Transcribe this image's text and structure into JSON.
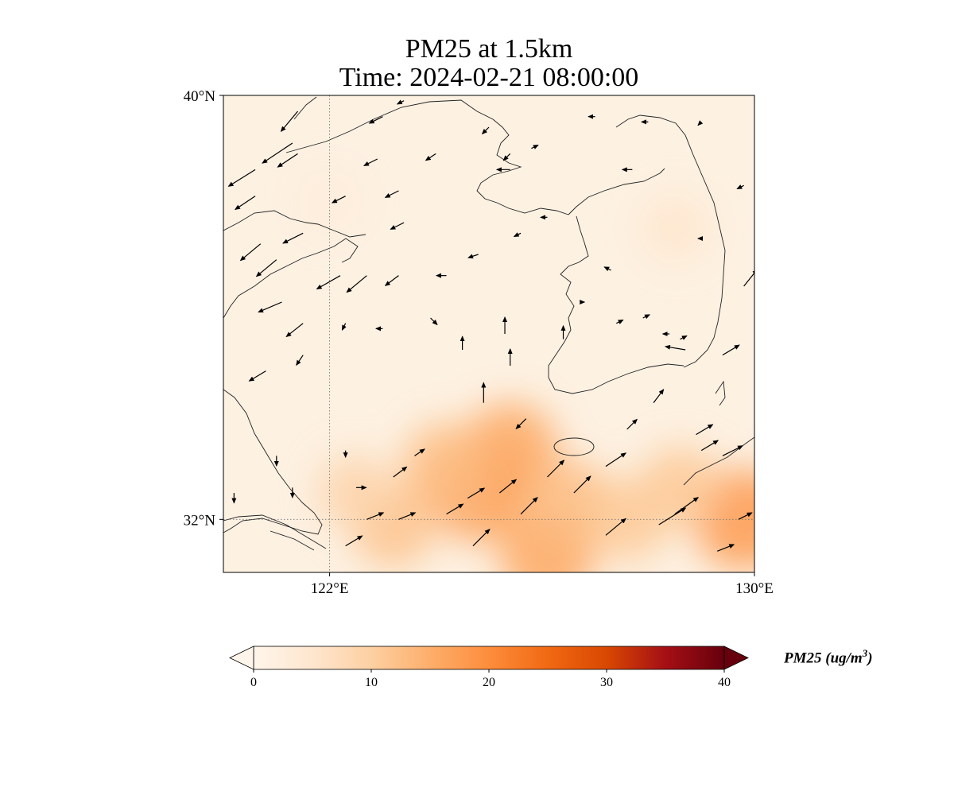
{
  "title": {
    "line1": "PM25 at 1.5km",
    "line2": "Time: 2024-02-21 08:00:00"
  },
  "map": {
    "projection": "lat-lon",
    "extent": {
      "lon_min": 120.0,
      "lon_max": 130.0,
      "lat_min": 31.0,
      "lat_max": 40.0
    },
    "lon_ticks": [
      {
        "value": 122,
        "label": "122°E"
      },
      {
        "value": 130,
        "label": "130°E"
      }
    ],
    "lat_ticks": [
      {
        "value": 40,
        "label": "40°N"
      },
      {
        "value": 32,
        "label": "32°N"
      }
    ],
    "gridlines": {
      "lon": [
        122
      ],
      "lat": [
        32
      ],
      "style": "dotted"
    },
    "coastlines": true,
    "background_color": "#fdf1e2"
  },
  "chart_data": {
    "type": "heatmap",
    "variable": "PM25",
    "level": "1.5km",
    "time": "2024-02-21 08:00:00",
    "colorbar": {
      "label": "PM25 (ug/m",
      "label_sup": "3",
      "label_close": ")",
      "ticks": [
        0,
        10,
        20,
        30,
        40
      ],
      "vmin": 0,
      "vmax": 40,
      "extend": "both",
      "colors": [
        "#fff5eb",
        "#fee6ce",
        "#fdd0a2",
        "#fdae6b",
        "#fd8d3c",
        "#f16913",
        "#d94801",
        "#a50f15",
        "#67000d"
      ]
    },
    "hotspots": [
      {
        "lon": 124.8,
        "lat": 32.5,
        "value": 17
      },
      {
        "lon": 125.4,
        "lat": 33.3,
        "value": 16
      },
      {
        "lon": 124.2,
        "lat": 33.0,
        "value": 13
      },
      {
        "lon": 123.2,
        "lat": 31.9,
        "value": 12
      },
      {
        "lon": 126.1,
        "lat": 31.3,
        "value": 16
      },
      {
        "lon": 126.5,
        "lat": 32.3,
        "value": 13
      },
      {
        "lon": 129.8,
        "lat": 32.0,
        "value": 18
      },
      {
        "lon": 127.6,
        "lat": 32.0,
        "value": 11
      },
      {
        "lon": 128.6,
        "lat": 32.6,
        "value": 11
      },
      {
        "lon": 122.5,
        "lat": 32.5,
        "value": 9
      },
      {
        "lon": 128.5,
        "lat": 37.5,
        "value": 5
      },
      {
        "lon": 122.0,
        "lat": 38.0,
        "value": 3
      }
    ],
    "wind_vectors": [
      {
        "lon": 121.4,
        "lat": 39.7,
        "u": -0.5,
        "v": -0.6
      },
      {
        "lon": 121.3,
        "lat": 39.1,
        "u": -0.9,
        "v": -0.6
      },
      {
        "lon": 121.4,
        "lat": 38.9,
        "u": -0.6,
        "v": -0.4
      },
      {
        "lon": 120.6,
        "lat": 38.6,
        "u": -0.8,
        "v": -0.5
      },
      {
        "lon": 120.6,
        "lat": 38.1,
        "u": -0.6,
        "v": -0.4
      },
      {
        "lon": 121.5,
        "lat": 37.4,
        "u": -0.6,
        "v": -0.3
      },
      {
        "lon": 120.7,
        "lat": 37.2,
        "u": -0.6,
        "v": -0.5
      },
      {
        "lon": 121.0,
        "lat": 36.9,
        "u": -0.6,
        "v": -0.5
      },
      {
        "lon": 122.2,
        "lat": 36.6,
        "u": -0.7,
        "v": -0.4
      },
      {
        "lon": 122.7,
        "lat": 36.6,
        "u": -0.6,
        "v": -0.5
      },
      {
        "lon": 123.3,
        "lat": 36.6,
        "u": -0.4,
        "v": -0.3
      },
      {
        "lon": 124.2,
        "lat": 36.6,
        "u": -0.3,
        "v": 0.0
      },
      {
        "lon": 121.1,
        "lat": 36.1,
        "u": -0.7,
        "v": -0.3
      },
      {
        "lon": 121.5,
        "lat": 35.7,
        "u": -0.5,
        "v": -0.4
      },
      {
        "lon": 122.3,
        "lat": 35.7,
        "u": -0.1,
        "v": -0.2
      },
      {
        "lon": 123.0,
        "lat": 35.6,
        "u": -0.2,
        "v": 0.0
      },
      {
        "lon": 123.9,
        "lat": 35.8,
        "u": 0.2,
        "v": -0.2
      },
      {
        "lon": 121.5,
        "lat": 35.1,
        "u": -0.2,
        "v": -0.3
      },
      {
        "lon": 120.8,
        "lat": 34.8,
        "u": -0.5,
        "v": -0.3
      },
      {
        "lon": 124.5,
        "lat": 35.2,
        "u": 0.0,
        "v": 0.4
      },
      {
        "lon": 125.3,
        "lat": 35.5,
        "u": 0.0,
        "v": 0.5
      },
      {
        "lon": 125.4,
        "lat": 34.9,
        "u": 0.0,
        "v": 0.5
      },
      {
        "lon": 124.9,
        "lat": 34.2,
        "u": 0.0,
        "v": 0.6
      },
      {
        "lon": 125.7,
        "lat": 33.9,
        "u": -0.3,
        "v": -0.3
      },
      {
        "lon": 122.3,
        "lat": 33.3,
        "u": 0.0,
        "v": -0.2
      },
      {
        "lon": 121.0,
        "lat": 33.2,
        "u": 0.0,
        "v": -0.3
      },
      {
        "lon": 121.3,
        "lat": 32.6,
        "u": 0.0,
        "v": -0.3
      },
      {
        "lon": 120.2,
        "lat": 32.5,
        "u": 0.0,
        "v": -0.3
      },
      {
        "lon": 122.5,
        "lat": 32.6,
        "u": 0.3,
        "v": 0.0
      },
      {
        "lon": 123.2,
        "lat": 32.8,
        "u": 0.4,
        "v": 0.3
      },
      {
        "lon": 123.6,
        "lat": 33.2,
        "u": 0.3,
        "v": 0.2
      },
      {
        "lon": 122.7,
        "lat": 32.0,
        "u": 0.5,
        "v": 0.2
      },
      {
        "lon": 123.3,
        "lat": 32.0,
        "u": 0.5,
        "v": 0.2
      },
      {
        "lon": 124.2,
        "lat": 32.1,
        "u": 0.5,
        "v": 0.3
      },
      {
        "lon": 124.6,
        "lat": 32.4,
        "u": 0.5,
        "v": 0.3
      },
      {
        "lon": 125.2,
        "lat": 32.5,
        "u": 0.5,
        "v": 0.4
      },
      {
        "lon": 125.6,
        "lat": 32.1,
        "u": 0.5,
        "v": 0.5
      },
      {
        "lon": 126.1,
        "lat": 32.8,
        "u": 0.5,
        "v": 0.5
      },
      {
        "lon": 126.6,
        "lat": 32.5,
        "u": 0.5,
        "v": 0.5
      },
      {
        "lon": 122.3,
        "lat": 31.5,
        "u": 0.5,
        "v": 0.3
      },
      {
        "lon": 124.7,
        "lat": 31.5,
        "u": 0.5,
        "v": 0.5
      },
      {
        "lon": 127.2,
        "lat": 31.7,
        "u": 0.6,
        "v": 0.5
      },
      {
        "lon": 127.2,
        "lat": 33.0,
        "u": 0.6,
        "v": 0.4
      },
      {
        "lon": 128.2,
        "lat": 31.9,
        "u": 0.8,
        "v": 0.5
      },
      {
        "lon": 128.5,
        "lat": 32.1,
        "u": 0.7,
        "v": 0.5
      },
      {
        "lon": 127.6,
        "lat": 33.7,
        "u": 0.3,
        "v": 0.3
      },
      {
        "lon": 128.1,
        "lat": 34.2,
        "u": 0.3,
        "v": 0.4
      },
      {
        "lon": 128.9,
        "lat": 33.6,
        "u": 0.5,
        "v": 0.3
      },
      {
        "lon": 129.0,
        "lat": 33.3,
        "u": 0.5,
        "v": 0.3
      },
      {
        "lon": 129.4,
        "lat": 33.2,
        "u": 0.6,
        "v": 0.3
      },
      {
        "lon": 129.3,
        "lat": 31.4,
        "u": 0.5,
        "v": 0.2
      },
      {
        "lon": 129.7,
        "lat": 32.0,
        "u": 0.4,
        "v": 0.2
      },
      {
        "lon": 128.7,
        "lat": 35.2,
        "u": -0.6,
        "v": 0.1
      },
      {
        "lon": 128.4,
        "lat": 35.5,
        "u": -0.2,
        "v": 0.0
      },
      {
        "lon": 129.4,
        "lat": 35.1,
        "u": 0.5,
        "v": 0.3
      },
      {
        "lon": 127.9,
        "lat": 35.8,
        "u": 0.2,
        "v": 0.1
      },
      {
        "lon": 127.4,
        "lat": 35.7,
        "u": 0.2,
        "v": 0.1
      },
      {
        "lon": 129.8,
        "lat": 36.4,
        "u": 0.4,
        "v": 0.5
      },
      {
        "lon": 128.6,
        "lat": 35.4,
        "u": 0.2,
        "v": 0.1
      },
      {
        "lon": 126.8,
        "lat": 36.1,
        "u": 0.0,
        "v": 0.0
      },
      {
        "lon": 126.4,
        "lat": 35.4,
        "u": 0.0,
        "v": 0.4
      },
      {
        "lon": 127.3,
        "lat": 36.7,
        "u": -0.2,
        "v": 0.1
      },
      {
        "lon": 126.1,
        "lat": 37.7,
        "u": -0.2,
        "v": 0.0
      },
      {
        "lon": 125.4,
        "lat": 38.6,
        "u": -0.4,
        "v": 0.0
      },
      {
        "lon": 127.0,
        "lat": 39.6,
        "u": -0.2,
        "v": 0.0
      },
      {
        "lon": 127.7,
        "lat": 38.6,
        "u": -0.3,
        "v": 0.0
      },
      {
        "lon": 128.0,
        "lat": 39.5,
        "u": -0.2,
        "v": 0.0
      },
      {
        "lon": 129.0,
        "lat": 39.5,
        "u": -0.1,
        "v": -0.1
      },
      {
        "lon": 129.8,
        "lat": 38.3,
        "u": -0.2,
        "v": -0.1
      },
      {
        "lon": 129.0,
        "lat": 37.3,
        "u": -0.1,
        "v": 0.0
      },
      {
        "lon": 125.4,
        "lat": 38.9,
        "u": -0.2,
        "v": -0.2
      },
      {
        "lon": 125.0,
        "lat": 39.4,
        "u": -0.2,
        "v": -0.2
      },
      {
        "lon": 125.8,
        "lat": 39.0,
        "u": 0.2,
        "v": 0.1
      },
      {
        "lon": 123.0,
        "lat": 39.6,
        "u": -0.4,
        "v": -0.2
      },
      {
        "lon": 123.4,
        "lat": 39.9,
        "u": -0.2,
        "v": -0.1
      },
      {
        "lon": 124.0,
        "lat": 38.9,
        "u": -0.3,
        "v": -0.2
      },
      {
        "lon": 122.9,
        "lat": 38.8,
        "u": -0.4,
        "v": -0.2
      },
      {
        "lon": 122.3,
        "lat": 38.1,
        "u": -0.4,
        "v": -0.2
      },
      {
        "lon": 123.3,
        "lat": 38.2,
        "u": -0.4,
        "v": -0.2
      },
      {
        "lon": 123.4,
        "lat": 37.6,
        "u": -0.4,
        "v": -0.2
      },
      {
        "lon": 124.8,
        "lat": 37.0,
        "u": -0.3,
        "v": -0.1
      },
      {
        "lon": 125.6,
        "lat": 37.4,
        "u": -0.2,
        "v": -0.1
      }
    ]
  }
}
